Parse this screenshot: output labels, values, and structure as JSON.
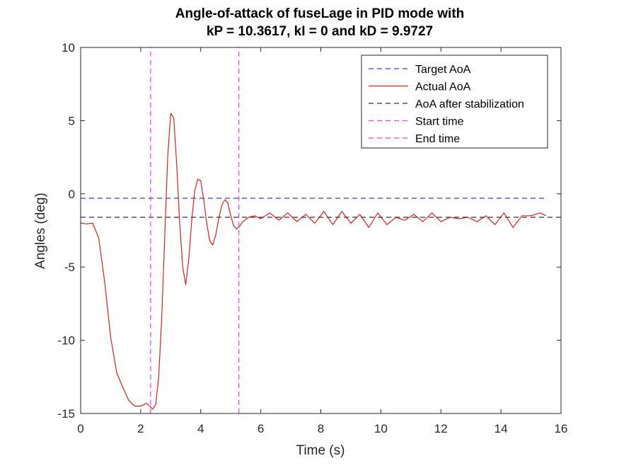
{
  "chart_data": {
    "type": "line",
    "title": [
      "Angle-of-attack of fuseLage in PID mode with",
      "kP = 10.3617, kI = 0 and kD = 9.9727"
    ],
    "xlabel": "Time (s)",
    "ylabel": "Angles (deg)",
    "xlim": [
      0,
      16
    ],
    "ylim": [
      -15,
      10
    ],
    "xticks": [
      "0",
      "2",
      "4",
      "6",
      "8",
      "10",
      "12",
      "14",
      "16"
    ],
    "yticks": [
      "-15",
      "-10",
      "-5",
      "0",
      "5",
      "10"
    ],
    "xtick_values": [
      0,
      2,
      4,
      6,
      8,
      10,
      12,
      14,
      16
    ],
    "ytick_values": [
      -15,
      -10,
      -5,
      0,
      5,
      10
    ],
    "grid": false,
    "legend_position": "top-right",
    "series": [
      {
        "name": "Target AoA",
        "style": "dashed",
        "color": "#3a3ad0",
        "x": [
          0,
          15.5
        ],
        "y": [
          -0.3,
          -0.3
        ]
      },
      {
        "name": "Actual AoA",
        "style": "solid",
        "color": "#d42020",
        "x": [
          0,
          0.2,
          0.4,
          0.6,
          0.8,
          1.0,
          1.2,
          1.4,
          1.6,
          1.8,
          2.0,
          2.1,
          2.2,
          2.3,
          2.4,
          2.5,
          2.6,
          2.7,
          2.8,
          2.9,
          3.0,
          3.1,
          3.2,
          3.3,
          3.4,
          3.5,
          3.6,
          3.7,
          3.8,
          3.9,
          4.0,
          4.1,
          4.2,
          4.3,
          4.4,
          4.5,
          4.6,
          4.7,
          4.8,
          4.9,
          5.0,
          5.1,
          5.2,
          5.3,
          5.4,
          5.6,
          5.8,
          6.0,
          6.3,
          6.6,
          6.9,
          7.2,
          7.5,
          7.8,
          8.1,
          8.4,
          8.7,
          9.0,
          9.3,
          9.6,
          9.9,
          10.2,
          10.5,
          10.8,
          11.1,
          11.4,
          11.7,
          12.0,
          12.3,
          12.6,
          12.9,
          13.2,
          13.5,
          13.8,
          14.1,
          14.4,
          14.7,
          15.0,
          15.3,
          15.5
        ],
        "y": [
          -2.0,
          -2.05,
          -2.0,
          -3.0,
          -6.0,
          -9.8,
          -12.2,
          -13.2,
          -14.1,
          -14.5,
          -14.5,
          -14.4,
          -14.3,
          -14.5,
          -14.7,
          -14.4,
          -12.5,
          -8.5,
          -3.0,
          2.5,
          5.5,
          5.2,
          2.0,
          -2.0,
          -5.0,
          -6.2,
          -4.5,
          -1.8,
          0.2,
          1.0,
          0.9,
          -0.4,
          -2.0,
          -3.2,
          -3.5,
          -2.8,
          -1.7,
          -0.8,
          -0.4,
          -0.6,
          -1.5,
          -2.2,
          -2.4,
          -2.2,
          -1.9,
          -1.6,
          -1.5,
          -1.7,
          -1.3,
          -1.8,
          -1.3,
          -1.9,
          -1.4,
          -2.0,
          -1.2,
          -2.1,
          -1.2,
          -2.0,
          -1.4,
          -2.3,
          -1.3,
          -2.1,
          -1.6,
          -1.8,
          -1.4,
          -1.9,
          -1.3,
          -1.9,
          -1.6,
          -1.7,
          -1.6,
          -1.9,
          -1.5,
          -2.1,
          -1.3,
          -2.3,
          -1.5,
          -1.5,
          -1.3,
          -1.5
        ]
      },
      {
        "name": "AoA after stabilization",
        "style": "dashed",
        "color": "#333333",
        "x": [
          0,
          16
        ],
        "y": [
          -1.6,
          -1.6
        ]
      },
      {
        "name": "Start time",
        "style": "dashed",
        "color": "#e040e0",
        "orientation": "vertical",
        "x": [
          2.33,
          2.33
        ],
        "y": [
          -15,
          10
        ]
      },
      {
        "name": "End time",
        "style": "dashed",
        "color": "#e040e0",
        "orientation": "vertical",
        "x": [
          5.27,
          5.27
        ],
        "y": [
          -15,
          10
        ]
      }
    ]
  }
}
